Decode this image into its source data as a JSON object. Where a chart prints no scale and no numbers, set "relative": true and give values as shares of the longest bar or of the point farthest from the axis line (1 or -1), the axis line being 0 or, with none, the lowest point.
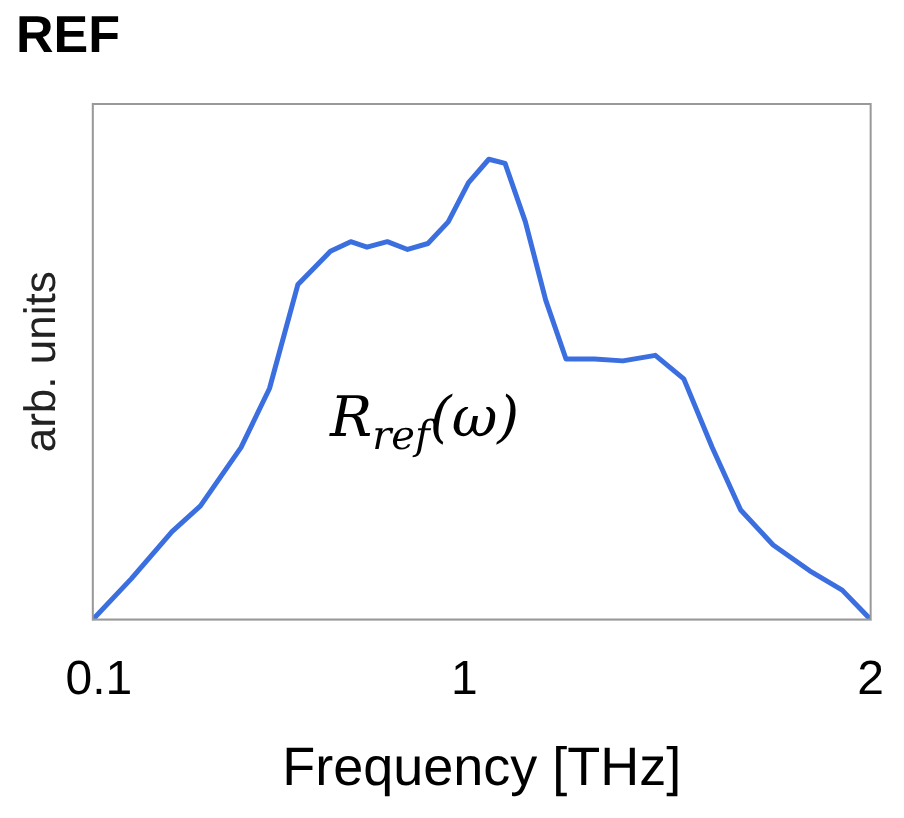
{
  "chart_data": {
    "type": "line",
    "title": "REF",
    "xlabel": "Frequency [THz]",
    "ylabel": "arb. units",
    "relative": true,
    "grid": false,
    "legend": false,
    "marker": "none",
    "line_style": "solid",
    "xlim": [
      0.085,
      2
    ],
    "xticks": [
      0.1,
      1,
      2
    ],
    "annotations": [
      "R$_{ref}$(ω)"
    ],
    "series": [
      {
        "color": "#3b6fe0",
        "x": [
          0.085,
          0.18,
          0.28,
          0.35,
          0.45,
          0.52,
          0.59,
          0.67,
          0.72,
          0.76,
          0.81,
          0.86,
          0.91,
          0.96,
          1.01,
          1.06,
          1.1,
          1.15,
          1.2,
          1.25,
          1.32,
          1.39,
          1.47,
          1.54,
          1.61,
          1.68,
          1.76,
          1.85,
          1.93,
          2
        ],
        "values": [
          0,
          0.089,
          0.191,
          0.247,
          0.374,
          0.502,
          0.728,
          0.8,
          0.821,
          0.809,
          0.821,
          0.804,
          0.817,
          0.864,
          0.949,
          1,
          0.991,
          0.864,
          0.694,
          0.566,
          0.566,
          0.562,
          0.574,
          0.523,
          0.374,
          0.238,
          0.162,
          0.106,
          0.064,
          0
        ]
      }
    ]
  }
}
